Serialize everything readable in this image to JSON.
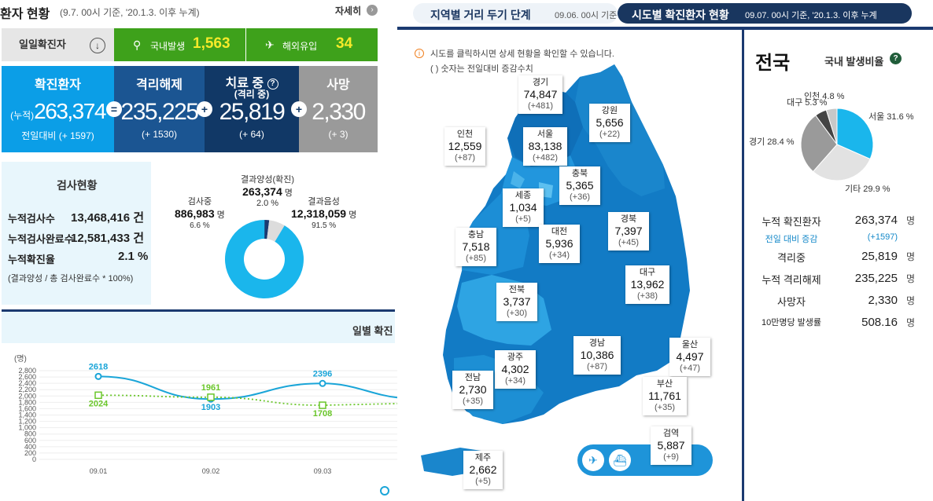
{
  "left": {
    "title": "환자 현황",
    "subtitle": "(9.7. 00시 기준, '20.1.3. 이후 누계)",
    "more": "자세히",
    "daily_label": "일일확진자",
    "domestic": {
      "label": "국내발생",
      "value": "1,563"
    },
    "overseas": {
      "label": "해외유입",
      "value": "34"
    },
    "confirmed": {
      "title": "확진환자",
      "prefix": "(누적)",
      "value": "263,374",
      "delta": "전일대비 (+ 1597)"
    },
    "released": {
      "title": "격리해제",
      "value": "235,225",
      "delta": "(+ 1530)"
    },
    "treating": {
      "title": "치료 중",
      "sub": "(격리 중)",
      "value": "25,819",
      "delta": "(+ 64)"
    },
    "deaths": {
      "title": "사망",
      "value": "2,330",
      "delta": "(+ 3)"
    },
    "ops": [
      "=",
      "+",
      "+"
    ],
    "tests": {
      "title": "검사현황",
      "rows": [
        {
          "label": "누적검사수",
          "value": "13,468,416 건"
        },
        {
          "label": "누적검사완료수",
          "value": "12,581,433 건"
        },
        {
          "label": "누적확진율",
          "value": "2.1 %"
        }
      ],
      "note": "(결과양성 / 총 검사완료수 * 100%)"
    },
    "test_pie": {
      "positive": {
        "label": "결과양성(확진)",
        "value": "263,374",
        "unit": "명",
        "pct": "2.0 %",
        "fraction": 0.02
      },
      "testing": {
        "label": "검사중",
        "value": "886,983",
        "unit": "명",
        "pct": "6.6 %",
        "fraction": 0.066
      },
      "negative": {
        "label": "결과음성",
        "value": "12,318,059",
        "unit": "명",
        "pct": "91.5 %",
        "fraction": 0.915
      },
      "colors": {
        "positive": "#1b3a70",
        "testing": "#dcdcdc",
        "negative": "#1ab6ec"
      }
    },
    "chart_title": "일별 확진",
    "chart_data": {
      "type": "line",
      "ylabel": "(명)",
      "ylim": [
        0,
        2800
      ],
      "yticks": [
        "2,800",
        "2,600",
        "2,400",
        "2,200",
        "2,000",
        "1,800",
        "1,600",
        "1,400",
        "1,200",
        "1,000",
        "800",
        "600",
        "400",
        "200",
        "0"
      ],
      "categories": [
        "09.01",
        "09.02",
        "09.03"
      ],
      "series": [
        {
          "values": [
            2618,
            1903,
            2396
          ],
          "labels": [
            "2618",
            "1903",
            "2396"
          ],
          "color": "#1aa5d8",
          "style": "solid"
        },
        {
          "values": [
            2024,
            1961,
            1708
          ],
          "labels": [
            "2024",
            "1961",
            "1708"
          ],
          "color": "#6ac62a",
          "style": "dotted"
        }
      ]
    }
  },
  "mid": {
    "tab1": {
      "label": "지역별 거리 두기 단계",
      "sub": "09.06. 00시 기준"
    },
    "tab2": {
      "label": "시도별 확진환자 현황",
      "sub": "09.07. 00시 기준, '20.1.3. 이후 누계"
    },
    "note1": "시도를 클릭하시면 상세 현황을 확인할 수 있습니다.",
    "note2": "( ) 숫자는 전일대비 증감수치",
    "regions": [
      {
        "name": "경기",
        "count": "74,847",
        "delta": "(+481)"
      },
      {
        "name": "강원",
        "count": "5,656",
        "delta": "(+22)"
      },
      {
        "name": "인천",
        "count": "12,559",
        "delta": "(+87)"
      },
      {
        "name": "서울",
        "count": "83,138",
        "delta": "(+482)"
      },
      {
        "name": "충북",
        "count": "5,365",
        "delta": "(+36)"
      },
      {
        "name": "세종",
        "count": "1,034",
        "delta": "(+5)"
      },
      {
        "name": "경북",
        "count": "7,397",
        "delta": "(+45)"
      },
      {
        "name": "대전",
        "count": "5,936",
        "delta": "(+34)"
      },
      {
        "name": "충남",
        "count": "7,518",
        "delta": "(+85)"
      },
      {
        "name": "대구",
        "count": "13,962",
        "delta": "(+38)"
      },
      {
        "name": "전북",
        "count": "3,737",
        "delta": "(+30)"
      },
      {
        "name": "울산",
        "count": "4,497",
        "delta": "(+47)"
      },
      {
        "name": "경남",
        "count": "10,386",
        "delta": "(+87)"
      },
      {
        "name": "광주",
        "count": "4,302",
        "delta": "(+34)"
      },
      {
        "name": "전남",
        "count": "2,730",
        "delta": "(+35)"
      },
      {
        "name": "부산",
        "count": "11,761",
        "delta": "(+35)"
      },
      {
        "name": "제주",
        "count": "2,662",
        "delta": "(+5)"
      }
    ],
    "quarantine": {
      "name": "검역",
      "count": "5,887",
      "delta": "(+9)"
    }
  },
  "right": {
    "title": "전국",
    "ratio_label": "국내 발생비율",
    "pie": [
      {
        "label": "서울 31.6 %",
        "fraction": 0.316,
        "color": "#1ab6ec"
      },
      {
        "label": "기타 29.9 %",
        "fraction": 0.299,
        "color": "#e2e2e2"
      },
      {
        "label": "경기 28.4 %",
        "fraction": 0.284,
        "color": "#9a9a9a"
      },
      {
        "label": "대구 5.3 %",
        "fraction": 0.053,
        "color": "#444444"
      },
      {
        "label": "인천 4.8 %",
        "fraction": 0.048,
        "color": "#c8c8c8"
      }
    ],
    "stats": [
      {
        "label": "누적 확진환자",
        "value": "263,374",
        "unit": "명"
      },
      {
        "label": "전일 대비 증감",
        "value": "(+1597)",
        "unit": ""
      },
      {
        "label": "격리중",
        "value": "25,819",
        "unit": "명"
      },
      {
        "label": "누적 격리해제",
        "value": "235,225",
        "unit": "명"
      },
      {
        "label": "사망자",
        "value": "2,330",
        "unit": "명"
      },
      {
        "label": "10만명당 발생률",
        "value": "508.16",
        "unit": "명"
      }
    ]
  }
}
